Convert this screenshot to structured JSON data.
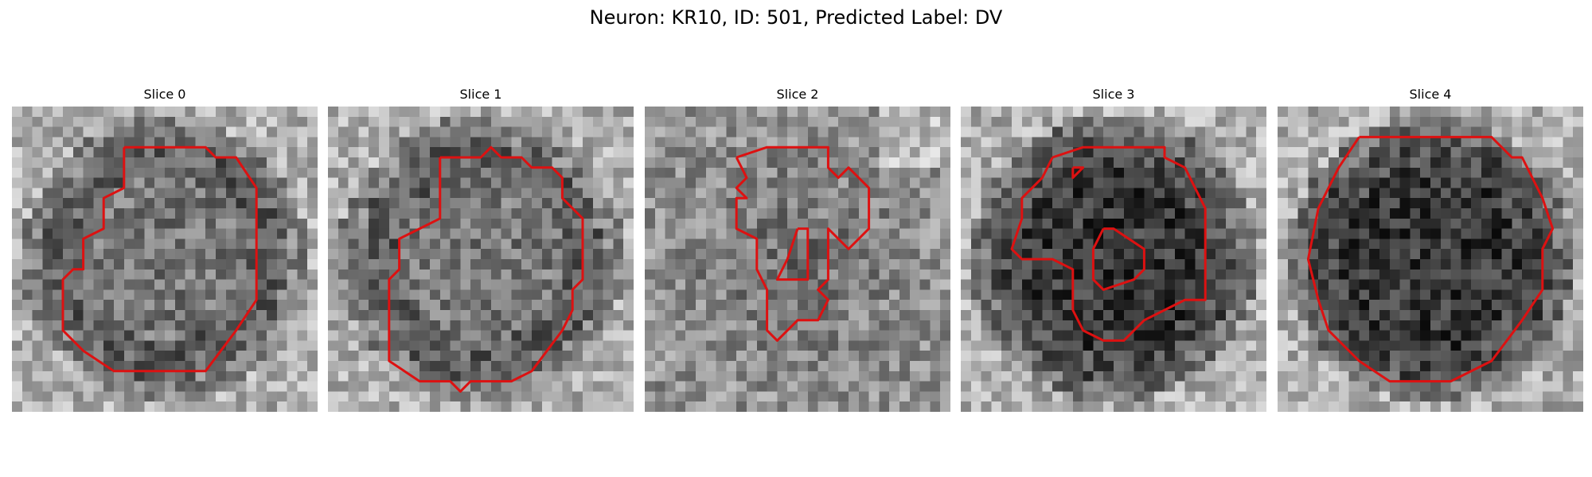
{
  "title": "Neuron: KR10, ID: 501, Predicted Label: DV",
  "colors": {
    "contour": "#dd1111",
    "background": "#ffffff"
  },
  "panels": [
    {
      "label": "Slice 0",
      "pattern": "ring"
    },
    {
      "label": "Slice 1",
      "pattern": "ring"
    },
    {
      "label": "Slice 2",
      "pattern": "uniform"
    },
    {
      "label": "Slice 3",
      "pattern": "dark-core"
    },
    {
      "label": "Slice 4",
      "pattern": "dark-core"
    }
  ]
}
